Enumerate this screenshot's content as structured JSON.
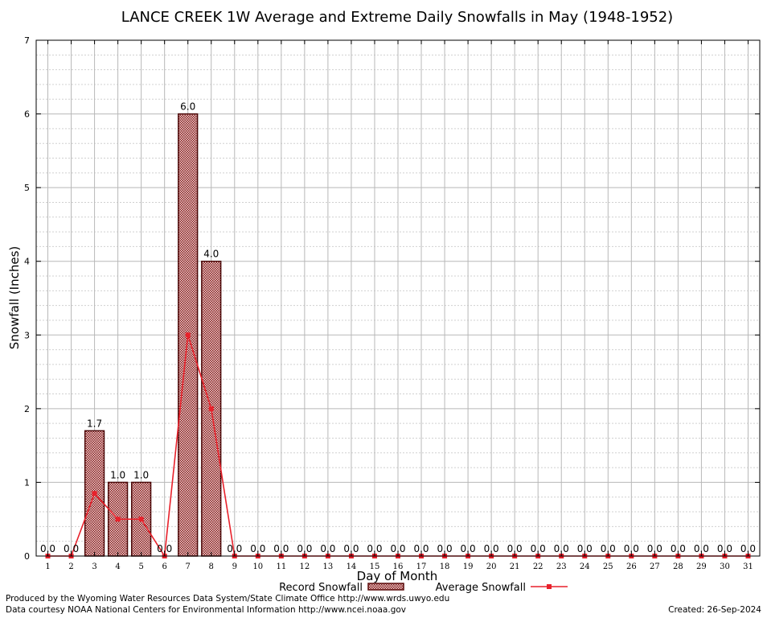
{
  "chart_data": {
    "type": "bar",
    "title": "LANCE CREEK 1W Average and Extreme Daily Snowfalls in May (1948-1952)",
    "xlabel": "Day of Month",
    "ylabel": "Snowfall (Inches)",
    "ylim": [
      0,
      7
    ],
    "yticks": [
      "0",
      "1",
      "2",
      "3",
      "4",
      "5",
      "6",
      "7"
    ],
    "grid": true,
    "legend_position": "bottom",
    "categories": [
      "1",
      "2",
      "3",
      "4",
      "5",
      "6",
      "7",
      "8",
      "9",
      "10",
      "11",
      "12",
      "13",
      "14",
      "15",
      "16",
      "17",
      "18",
      "19",
      "20",
      "21",
      "22",
      "23",
      "24",
      "25",
      "26",
      "27",
      "28",
      "29",
      "30",
      "31"
    ],
    "series": [
      {
        "name": "Record Snowfall",
        "kind": "bar",
        "color": "#8b1a1a",
        "values": [
          0,
          0,
          1.7,
          1.0,
          1.0,
          0,
          6.0,
          4.0,
          0,
          0,
          0,
          0,
          0,
          0,
          0,
          0,
          0,
          0,
          0,
          0,
          0,
          0,
          0,
          0,
          0,
          0,
          0,
          0,
          0,
          0,
          0
        ],
        "labels": [
          "0.0",
          "0.0",
          "1.7",
          "1.0",
          "1.0",
          "0.0",
          "6.0",
          "4.0",
          "0.0",
          "0.0",
          "0.0",
          "0.0",
          "0.0",
          "0.0",
          "0.0",
          "0.0",
          "0.0",
          "0.0",
          "0.0",
          "0.0",
          "0.0",
          "0.0",
          "0.0",
          "0.0",
          "0.0",
          "0.0",
          "0.0",
          "0.0",
          "0.0",
          "0.0",
          "0.0"
        ]
      },
      {
        "name": "Average Snowfall",
        "kind": "line",
        "color": "#e8212b",
        "values": [
          0,
          0,
          0.85,
          0.5,
          0.5,
          0,
          3.0,
          2.0,
          0,
          0,
          0,
          0,
          0,
          0,
          0,
          0,
          0,
          0,
          0,
          0,
          0,
          0,
          0,
          0,
          0,
          0,
          0,
          0,
          0,
          0,
          0
        ]
      }
    ]
  },
  "footer": {
    "produced_by": "Produced by the Wyoming Water Resources Data System/State Climate Office http://www.wrds.uwyo.edu",
    "data_courtesy": "Data courtesy NOAA National Centers for Environmental Information http://www.ncei.noaa.gov",
    "created": "Created:  26-Sep-2024"
  }
}
